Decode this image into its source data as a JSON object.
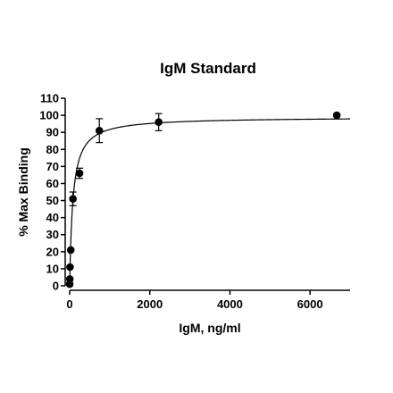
{
  "chart_data": {
    "type": "scatter",
    "title": "IgM Standard",
    "xlabel": "IgM, ng/ml",
    "ylabel": "% Max Binding",
    "xlim": [
      0,
      7000
    ],
    "ylim": [
      0,
      110
    ],
    "x_ticks": [
      0,
      2000,
      4000,
      6000
    ],
    "y_ticks": [
      0,
      10,
      20,
      30,
      40,
      50,
      60,
      70,
      80,
      90,
      100,
      110
    ],
    "grid": false,
    "legend": "none",
    "marker_color": "#000000",
    "series": [
      {
        "points": [
          {
            "x": 0,
            "y": 1,
            "err": 0
          },
          {
            "x": 3,
            "y": 4,
            "err": 0
          },
          {
            "x": 9,
            "y": 11,
            "err": 0
          },
          {
            "x": 27,
            "y": 21,
            "err": 0
          },
          {
            "x": 82,
            "y": 51,
            "err": 4
          },
          {
            "x": 247,
            "y": 66,
            "err": 3
          },
          {
            "x": 741,
            "y": 91,
            "err": 7
          },
          {
            "x": 2222,
            "y": 96,
            "err": 5
          },
          {
            "x": 6667,
            "y": 100,
            "err": 0
          }
        ]
      }
    ],
    "fit": {
      "type": "hyperbola",
      "bmax": 99,
      "kd": 80
    }
  }
}
